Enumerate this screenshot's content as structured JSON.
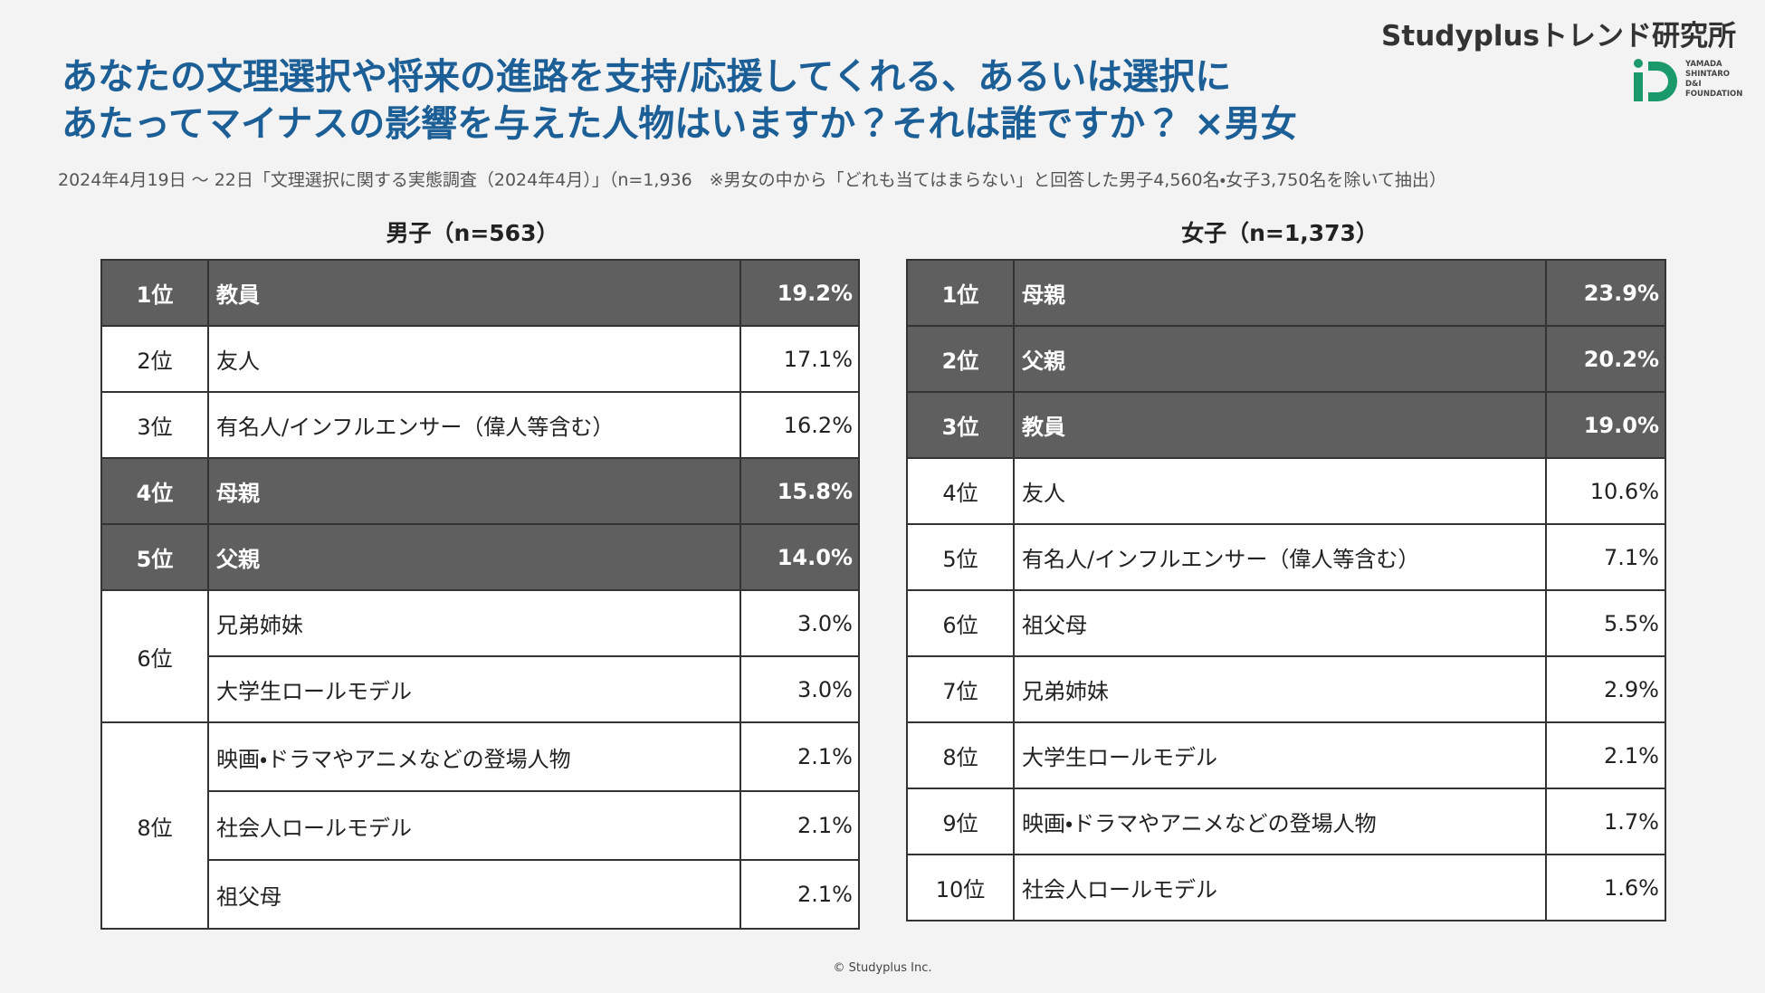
{
  "header": {
    "brand": "Studyplusトレンド研究所",
    "logo_text": [
      "YAMADA",
      "SHINTARO",
      "D&I",
      "FOUNDATION"
    ],
    "title": [
      "あなたの文理選択や将来の進路を支持/応援してくれる、あるいは選択に",
      "あたってマイナスの影響を与えた人物はいますか？それは誰ですか？ ×男女"
    ],
    "subtitle": "2024年4月19日 ～ 22日「文理選択に関する実態調査（2024年4月）」（n=1,936　※男女の中から「どれも当てはまらない」と回答した男子4,560名・女子3,750名を除いて抽出）"
  },
  "tables": [
    {
      "heading": "男子（n=563）",
      "groups": [
        {
          "rank": "1位",
          "highlight": true,
          "items": [
            {
              "name": "教員",
              "pct": "19.2%"
            }
          ]
        },
        {
          "rank": "2位",
          "highlight": false,
          "items": [
            {
              "name": "友人",
              "pct": "17.1%"
            }
          ]
        },
        {
          "rank": "3位",
          "highlight": false,
          "items": [
            {
              "name": "有名人/インフルエンサー（偉人等含む）",
              "pct": "16.2%"
            }
          ]
        },
        {
          "rank": "4位",
          "highlight": true,
          "items": [
            {
              "name": "母親",
              "pct": "15.8%"
            }
          ]
        },
        {
          "rank": "5位",
          "highlight": true,
          "items": [
            {
              "name": "父親",
              "pct": "14.0%"
            }
          ]
        },
        {
          "rank": "6位",
          "highlight": false,
          "items": [
            {
              "name": "兄弟姉妹",
              "pct": "3.0%"
            },
            {
              "name": "大学生ロールモデル",
              "pct": "3.0%"
            }
          ]
        },
        {
          "rank": "8位",
          "highlight": false,
          "items": [
            {
              "name": "映画・ドラマやアニメなどの登場人物",
              "pct": "2.1%"
            },
            {
              "name": "社会人ロールモデル",
              "pct": "2.1%"
            },
            {
              "name": "祖父母",
              "pct": "2.1%"
            }
          ]
        }
      ]
    },
    {
      "heading": "女子（n=1,373）",
      "groups": [
        {
          "rank": "1位",
          "highlight": true,
          "items": [
            {
              "name": "母親",
              "pct": "23.9%"
            }
          ]
        },
        {
          "rank": "2位",
          "highlight": true,
          "items": [
            {
              "name": "父親",
              "pct": "20.2%"
            }
          ]
        },
        {
          "rank": "3位",
          "highlight": true,
          "items": [
            {
              "name": "教員",
              "pct": "19.0%"
            }
          ]
        },
        {
          "rank": "4位",
          "highlight": false,
          "items": [
            {
              "name": "友人",
              "pct": "10.6%"
            }
          ]
        },
        {
          "rank": "5位",
          "highlight": false,
          "items": [
            {
              "name": "有名人/インフルエンサー（偉人等含む）",
              "pct": "7.1%"
            }
          ]
        },
        {
          "rank": "6位",
          "highlight": false,
          "items": [
            {
              "name": "祖父母",
              "pct": "5.5%"
            }
          ]
        },
        {
          "rank": "7位",
          "highlight": false,
          "items": [
            {
              "name": "兄弟姉妹",
              "pct": "2.9%"
            }
          ]
        },
        {
          "rank": "8位",
          "highlight": false,
          "items": [
            {
              "name": "大学生ロールモデル",
              "pct": "2.1%"
            }
          ]
        },
        {
          "rank": "9位",
          "highlight": false,
          "items": [
            {
              "name": "映画・ドラマやアニメなどの登場人物",
              "pct": "1.7%"
            }
          ]
        },
        {
          "rank": "10位",
          "highlight": false,
          "items": [
            {
              "name": "社会人ロールモデル",
              "pct": "1.6%"
            }
          ]
        }
      ]
    }
  ],
  "footer": "© Studyplus Inc."
}
